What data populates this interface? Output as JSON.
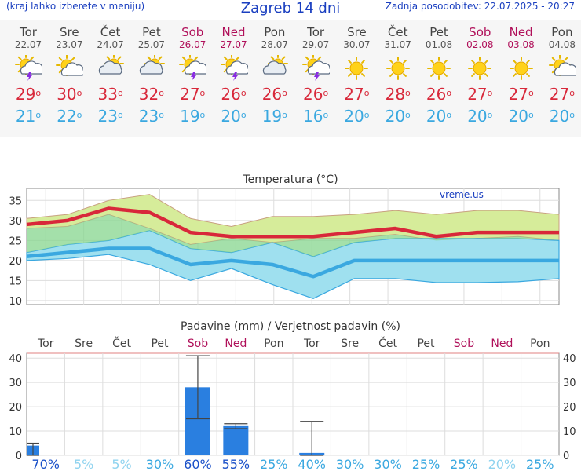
{
  "header": {
    "left": "(kraj lahko izberete v meniju)",
    "title": "Zagreb 14 dni",
    "right": "Zadnja posodobitev: 22.07.2025 - 20:27"
  },
  "colors": {
    "weekend": "#b0105a",
    "tmax": "#d8283a",
    "tmin": "#3aa8e0",
    "precip_bar": "#2a7fe0"
  },
  "days": [
    {
      "name": "Tor",
      "date": "22.07",
      "weekend": false,
      "icon": "thunderstorm-sun-icon",
      "tmax": "29",
      "tmin": "21",
      "prob": "70%"
    },
    {
      "name": "Sre",
      "date": "23.07",
      "weekend": false,
      "icon": "partly-cloudy-icon",
      "tmax": "30",
      "tmin": "22",
      "prob": "5%"
    },
    {
      "name": "Čet",
      "date": "24.07",
      "weekend": false,
      "icon": "cloudy-sun-icon",
      "tmax": "33",
      "tmin": "23",
      "prob": "5%"
    },
    {
      "name": "Pet",
      "date": "25.07",
      "weekend": false,
      "icon": "cloudy-sun-icon",
      "tmax": "32",
      "tmin": "23",
      "prob": "30%"
    },
    {
      "name": "Sob",
      "date": "26.07",
      "weekend": true,
      "icon": "thunderstorm-sun-icon",
      "tmax": "27",
      "tmin": "19",
      "prob": "60%"
    },
    {
      "name": "Ned",
      "date": "27.07",
      "weekend": true,
      "icon": "thunderstorm-sun-icon",
      "tmax": "26",
      "tmin": "20",
      "prob": "55%"
    },
    {
      "name": "Pon",
      "date": "28.07",
      "weekend": false,
      "icon": "cloudy-sun-icon",
      "tmax": "26",
      "tmin": "19",
      "prob": "25%"
    },
    {
      "name": "Tor",
      "date": "29.07",
      "weekend": false,
      "icon": "thunderstorm-sun-icon",
      "tmax": "26",
      "tmin": "16",
      "prob": "40%"
    },
    {
      "name": "Sre",
      "date": "30.07",
      "weekend": false,
      "icon": "sun-icon",
      "tmax": "27",
      "tmin": "20",
      "prob": "30%"
    },
    {
      "name": "Čet",
      "date": "31.07",
      "weekend": false,
      "icon": "sun-icon",
      "tmax": "28",
      "tmin": "20",
      "prob": "30%"
    },
    {
      "name": "Pet",
      "date": "01.08",
      "weekend": false,
      "icon": "sun-icon",
      "tmax": "26",
      "tmin": "20",
      "prob": "25%"
    },
    {
      "name": "Sob",
      "date": "02.08",
      "weekend": true,
      "icon": "sun-icon",
      "tmax": "27",
      "tmin": "20",
      "prob": "25%"
    },
    {
      "name": "Ned",
      "date": "03.08",
      "weekend": true,
      "icon": "sun-icon",
      "tmax": "27",
      "tmin": "20",
      "prob": "20%"
    },
    {
      "name": "Pon",
      "date": "04.08",
      "weekend": false,
      "icon": "partly-cloudy-icon",
      "tmax": "27",
      "tmin": "20",
      "prob": "25%"
    }
  ],
  "chart_data": [
    {
      "type": "line",
      "title": "Temperatura (°C)",
      "watermark": "vreme.us",
      "x": [
        "22.07",
        "23.07",
        "24.07",
        "25.07",
        "26.07",
        "27.07",
        "28.07",
        "29.07",
        "30.07",
        "31.07",
        "01.08",
        "02.08",
        "03.08",
        "04.08"
      ],
      "yticks": [
        10,
        15,
        20,
        25,
        30,
        35
      ],
      "ylim": [
        9,
        38
      ],
      "grid": true,
      "series": [
        {
          "values": [
            29,
            30,
            33,
            32,
            27,
            26,
            26,
            26,
            27,
            28,
            26,
            27,
            27,
            27
          ]
        },
        {
          "values": [
            21,
            22,
            23,
            23,
            19,
            20,
            19,
            16,
            20,
            20,
            20,
            20,
            20,
            20
          ]
        }
      ],
      "bands": [
        {
          "upper": [
            30.5,
            31.5,
            35,
            36.5,
            30.5,
            28.5,
            31,
            31,
            31.5,
            32.5,
            31.5,
            32.5,
            32.5,
            31.5
          ],
          "lower": [
            28,
            28.5,
            31.5,
            28,
            24,
            25.5,
            24.5,
            25.5,
            25.5,
            26.5,
            25,
            25.5,
            26,
            25
          ]
        },
        {
          "upper": [
            22,
            24,
            25,
            27.5,
            23,
            22,
            24.5,
            21,
            24.5,
            25.5,
            25.5,
            25.5,
            25.5,
            25
          ],
          "lower": [
            20,
            20.5,
            21.5,
            19,
            15,
            18,
            14,
            10.5,
            15.5,
            15.5,
            14.5,
            14.5,
            14.7,
            15.5
          ]
        }
      ],
      "overlap": {
        "upper": [
          24,
          24,
          24,
          22.5,
          25,
          25,
          25,
          25,
          25,
          24,
          25,
          25,
          25,
          25
        ]
      }
    },
    {
      "type": "bar",
      "title": "Padavine (mm) / Verjetnost padavin (%)",
      "categories": [
        "Tor",
        "Sre",
        "Čet",
        "Pet",
        "Sob",
        "Ned",
        "Pon",
        "Tor",
        "Sre",
        "Čet",
        "Pet",
        "Sob",
        "Ned",
        "Pon"
      ],
      "values": [
        4,
        0,
        0,
        0,
        28,
        12,
        0,
        1,
        0,
        0,
        0,
        0,
        0,
        0
      ],
      "range": [
        [
          0,
          5
        ],
        null,
        null,
        null,
        [
          15,
          41
        ],
        [
          11,
          13
        ],
        null,
        [
          0,
          14
        ],
        null,
        null,
        null,
        null,
        null,
        null
      ],
      "yticks": [
        0,
        10,
        20,
        30,
        40
      ],
      "ylim": [
        0,
        42
      ],
      "probability": [
        "70%",
        "5%",
        "5%",
        "30%",
        "60%",
        "55%",
        "25%",
        "40%",
        "30%",
        "30%",
        "25%",
        "25%",
        "20%",
        "25%"
      ]
    }
  ]
}
